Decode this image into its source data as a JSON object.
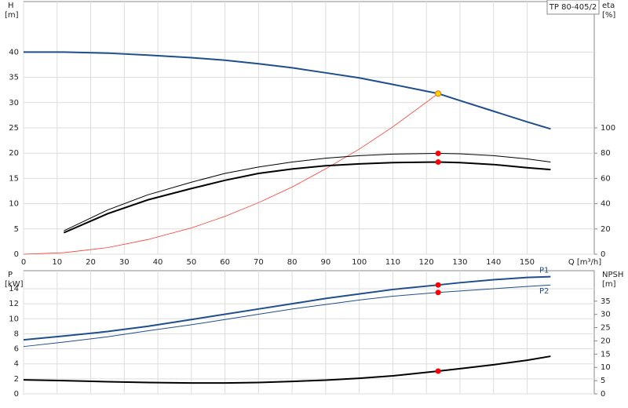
{
  "chart_data": [
    {
      "type": "line",
      "title": "TP 80-405/2",
      "xlabel": "Q [m³/h]",
      "ylabel": "H",
      "yunit": "[m]",
      "y2label": "eta",
      "y2unit": "[%]",
      "xlim": [
        0,
        170
      ],
      "xticks": [
        0,
        10,
        20,
        30,
        40,
        50,
        60,
        70,
        80,
        90,
        100,
        110,
        120,
        130,
        140,
        150
      ],
      "ylim": [
        0,
        50
      ],
      "yticks": [
        0,
        5,
        10,
        15,
        20,
        25,
        30,
        35,
        40
      ],
      "y2lim": [
        0,
        200
      ],
      "y2ticks": [
        0,
        20,
        40,
        60,
        80,
        100
      ],
      "grid": true,
      "series": [
        {
          "color": "#1f4e8c",
          "width": 2,
          "x": [
            0,
            12,
            25,
            37,
            50,
            60,
            70,
            80,
            90,
            100,
            110,
            123.5,
            130,
            140,
            150,
            157
          ],
          "values": [
            40,
            40,
            39.8,
            39.4,
            38.9,
            38.4,
            37.7,
            36.9,
            35.9,
            34.9,
            33.6,
            31.8,
            30.4,
            28.3,
            26.2,
            24.8
          ]
        },
        {
          "color": "#ff3b30",
          "width": 0.8,
          "x": [
            0,
            12,
            25,
            37,
            50,
            60,
            70,
            80,
            90,
            100,
            110,
            123.5
          ],
          "values": [
            0,
            0.3,
            1.3,
            2.9,
            5.2,
            7.5,
            10.2,
            13.3,
            16.9,
            20.8,
            25.2,
            31.8
          ]
        },
        {
          "color": "#000000",
          "width": 1,
          "axis": "y2",
          "x": [
            12,
            25,
            37,
            50,
            60,
            70,
            80,
            90,
            100,
            110,
            123.5,
            130,
            140,
            150,
            157
          ],
          "values": [
            18.5,
            35,
            47,
            57,
            64,
            69,
            73,
            76,
            78,
            79.3,
            79.8,
            79.5,
            78,
            75.5,
            73
          ]
        },
        {
          "color": "#000000",
          "width": 2,
          "axis": "y2",
          "x": [
            12,
            25,
            37,
            50,
            60,
            70,
            80,
            90,
            100,
            110,
            123.5,
            130,
            140,
            150,
            157
          ],
          "values": [
            17,
            32,
            43,
            52,
            58.5,
            64,
            67.5,
            70,
            71.5,
            72.5,
            73,
            72.5,
            71,
            68.5,
            67
          ]
        }
      ],
      "points": [
        {
          "x": 123.5,
          "y": 31.8,
          "color": "#ffd700"
        },
        {
          "x": 123.5,
          "y": 79.8,
          "color": "#ff0000",
          "axis": "y2"
        },
        {
          "x": 123.5,
          "y": 73,
          "color": "#ff0000",
          "axis": "y2"
        }
      ]
    },
    {
      "type": "line",
      "ylabel": "P",
      "yunit": "[kW]",
      "y2label": "NPSH",
      "y2unit": "[m]",
      "xlim": [
        0,
        170
      ],
      "xticks": [
        0,
        10,
        20,
        30,
        40,
        50,
        60,
        70,
        80,
        90,
        100,
        110,
        120,
        130,
        140,
        150
      ],
      "ylim": [
        0,
        16.4
      ],
      "yticks": [
        0,
        2,
        4,
        6,
        8,
        10,
        12,
        14
      ],
      "y2lim": [
        0,
        46.5
      ],
      "y2ticks": [
        0,
        5,
        10,
        15,
        20,
        25,
        30,
        35
      ],
      "grid": true,
      "series": [
        {
          "name": "P1",
          "color": "#1f4e8c",
          "width": 2,
          "x": [
            0,
            12,
            25,
            37,
            50,
            60,
            70,
            80,
            90,
            100,
            110,
            123.5,
            130,
            140,
            150,
            157
          ],
          "values": [
            7.2,
            7.7,
            8.3,
            9.0,
            9.9,
            10.6,
            11.3,
            12.0,
            12.7,
            13.3,
            13.9,
            14.5,
            14.8,
            15.2,
            15.5,
            15.6
          ]
        },
        {
          "name": "P2",
          "color": "#1f4e8c",
          "width": 1,
          "x": [
            0,
            12,
            25,
            37,
            50,
            60,
            70,
            80,
            90,
            100,
            110,
            123.5,
            130,
            140,
            150,
            157
          ],
          "values": [
            6.3,
            6.9,
            7.6,
            8.4,
            9.2,
            9.9,
            10.6,
            11.3,
            11.9,
            12.5,
            13.0,
            13.5,
            13.7,
            14.0,
            14.3,
            14.5
          ]
        },
        {
          "color": "#000000",
          "width": 2,
          "axis": "y2",
          "x": [
            0,
            12,
            25,
            37,
            50,
            60,
            70,
            80,
            90,
            100,
            110,
            123.5,
            130,
            140,
            150,
            157
          ],
          "values": [
            5.3,
            5.0,
            4.6,
            4.3,
            4.1,
            4.1,
            4.3,
            4.7,
            5.2,
            5.9,
            6.8,
            8.6,
            9.5,
            11.0,
            12.7,
            14.2
          ]
        }
      ],
      "points": [
        {
          "x": 123.5,
          "y": 14.5,
          "color": "#ff0000"
        },
        {
          "x": 123.5,
          "y": 13.5,
          "color": "#ff0000"
        },
        {
          "x": 123.5,
          "y": 8.6,
          "color": "#ff0000",
          "axis": "y2"
        }
      ]
    }
  ]
}
